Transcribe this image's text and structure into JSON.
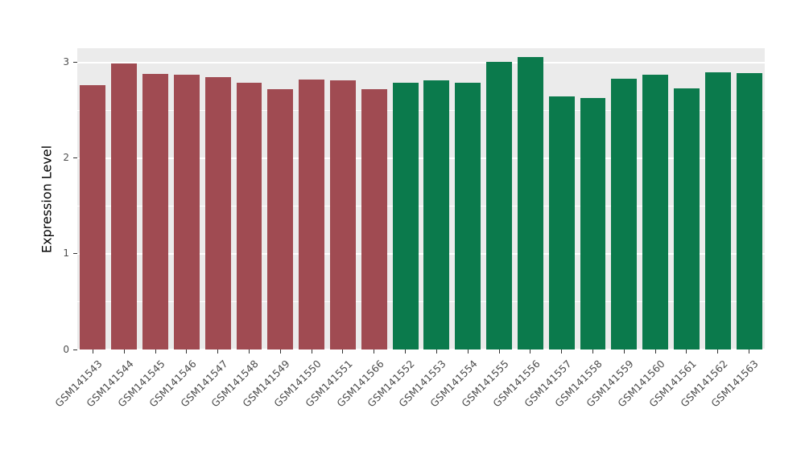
{
  "chart_data": {
    "type": "bar",
    "title": "",
    "xlabel": "",
    "ylabel": "Expression Level",
    "ylim": [
      0,
      3.15
    ],
    "yticks": [
      0,
      1,
      2,
      3
    ],
    "minor_gridlines": [
      0.5,
      1.5,
      2.5
    ],
    "grid": "on",
    "legend": "none",
    "panel_background": "#EBEBEB",
    "gridline_color": "#FFFFFF",
    "categories": [
      "GSM141543",
      "GSM141544",
      "GSM141545",
      "GSM141546",
      "GSM141547",
      "GSM141548",
      "GSM141549",
      "GSM141550",
      "GSM141551",
      "GSM141566",
      "GSM141552",
      "GSM141553",
      "GSM141554",
      "GSM141555",
      "GSM141556",
      "GSM141557",
      "GSM141558",
      "GSM141559",
      "GSM141560",
      "GSM141561",
      "GSM141562",
      "GSM141563"
    ],
    "values": [
      2.76,
      2.99,
      2.88,
      2.87,
      2.85,
      2.79,
      2.72,
      2.82,
      2.81,
      2.72,
      2.79,
      2.81,
      2.79,
      3.01,
      3.06,
      2.65,
      2.63,
      2.83,
      2.87,
      2.73,
      2.9,
      2.89
    ],
    "bar_groups": [
      0,
      0,
      0,
      0,
      0,
      0,
      0,
      0,
      0,
      0,
      1,
      1,
      1,
      1,
      1,
      1,
      1,
      1,
      1,
      1,
      1,
      1
    ],
    "group_colors": [
      "#A04B52",
      "#0B7A4C"
    ]
  }
}
